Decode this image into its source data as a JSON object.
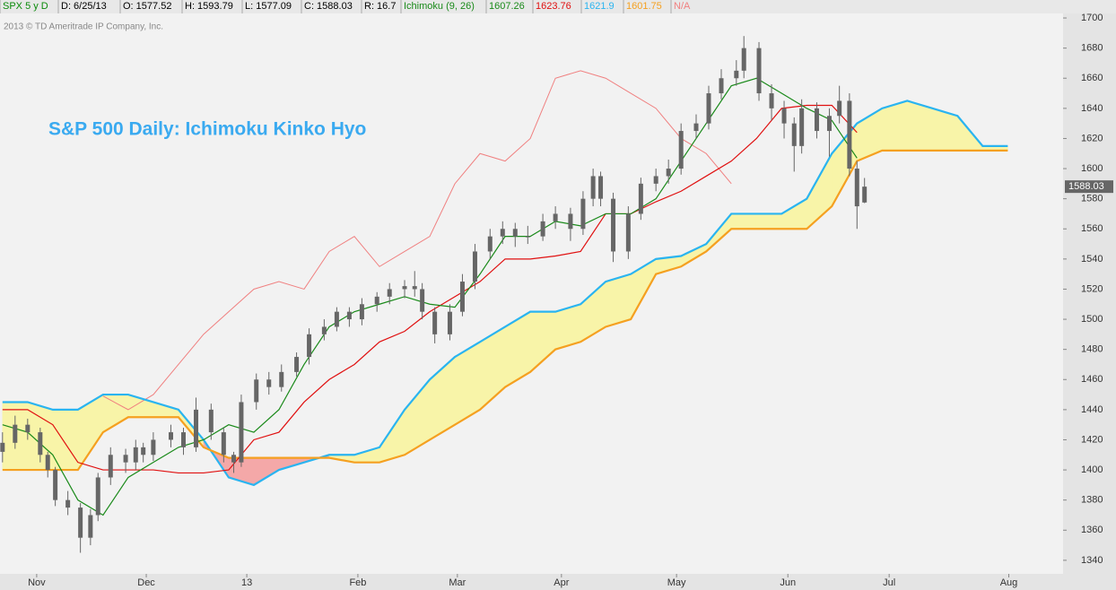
{
  "chart_data": {
    "type": "candlestick",
    "header": [
      {
        "text": "SPX 5 y D",
        "color": "#0a8a0a"
      },
      {
        "text": "D: 6/25/13",
        "color": "#000000"
      },
      {
        "text": "O: 1577.52",
        "color": "#000000"
      },
      {
        "text": "H: 1593.79",
        "color": "#000000"
      },
      {
        "text": "L: 1577.09",
        "color": "#000000"
      },
      {
        "text": "C: 1588.03",
        "color": "#000000"
      },
      {
        "text": "R: 16.7",
        "color": "#000000"
      },
      {
        "text": "Ichimoku (9, 26)",
        "color": "#1a8a1a"
      },
      {
        "text": "1607.26",
        "color": "#1a8a1a"
      },
      {
        "text": "1623.76",
        "color": "#e01010"
      },
      {
        "text": "1621.9",
        "color": "#2ab4f0"
      },
      {
        "text": "1601.75",
        "color": "#f5a020"
      },
      {
        "text": "N/A",
        "color": "#f08080"
      }
    ],
    "copyright": "2013 © TD Ameritrade IP Company, Inc.",
    "title": "S&P 500 Daily: Ichimoku Kinko Hyo",
    "title_color": "#3aaaf0",
    "last_price": 1588.03,
    "candle_color": "#666666",
    "xlim": [
      -0.5,
      211
    ],
    "xticks": [
      {
        "value": 6.8,
        "label": "Nov"
      },
      {
        "value": 28.6,
        "label": "Dec"
      },
      {
        "value": 48.6,
        "label": "13"
      },
      {
        "value": 70.7,
        "label": "Feb"
      },
      {
        "value": 90.5,
        "label": "Mar"
      },
      {
        "value": 111.2,
        "label": "Apr"
      },
      {
        "value": 134.1,
        "label": "May"
      },
      {
        "value": 156.25,
        "label": "Jun"
      },
      {
        "value": 176.4,
        "label": "Jul"
      },
      {
        "value": 200.2,
        "label": "Aug"
      }
    ],
    "ylim": [
      1331,
      1703
    ],
    "yticks": [
      1340,
      1360,
      1380,
      1400,
      1420,
      1440,
      1460,
      1480,
      1500,
      1520,
      1540,
      1560,
      1580,
      1600,
      1620,
      1640,
      1660,
      1680,
      1700
    ],
    "candle_x": [
      0,
      2.5,
      5,
      7.5,
      9,
      10.5,
      13,
      15.5,
      17.5,
      19,
      21.5,
      24.5,
      26.5,
      28,
      30,
      33.5,
      36,
      38.5,
      41.5,
      44,
      46,
      47.5,
      50.5,
      53,
      55.5,
      58.5,
      61,
      64,
      66.5,
      69,
      71.5,
      74.5,
      77,
      80,
      82,
      83.5,
      86,
      89,
      91.5,
      94,
      97,
      99.5,
      102,
      104.5,
      107.5,
      110,
      113,
      115.5,
      117.5,
      119,
      121.5,
      124.5,
      127,
      130,
      132.5,
      135,
      138,
      140.5,
      143,
      146,
      147.5,
      150.5,
      153,
      155.5,
      157.5,
      159,
      162,
      164.5,
      166.5,
      168.5,
      170,
      171.5
    ],
    "candles": [
      [
        1412,
        1425,
        1405,
        1418
      ],
      [
        1418,
        1436,
        1414,
        1430
      ],
      [
        1430,
        1434,
        1420,
        1425
      ],
      [
        1425,
        1428,
        1405,
        1410
      ],
      [
        1410,
        1412,
        1395,
        1400
      ],
      [
        1400,
        1402,
        1376,
        1380
      ],
      [
        1380,
        1386,
        1370,
        1375
      ],
      [
        1375,
        1378,
        1345,
        1355
      ],
      [
        1355,
        1374,
        1350,
        1370
      ],
      [
        1370,
        1398,
        1366,
        1395
      ],
      [
        1395,
        1415,
        1390,
        1410
      ],
      [
        1410,
        1414,
        1398,
        1405
      ],
      [
        1405,
        1420,
        1400,
        1415
      ],
      [
        1415,
        1418,
        1405,
        1410
      ],
      [
        1410,
        1425,
        1406,
        1420
      ],
      [
        1420,
        1430,
        1415,
        1425
      ],
      [
        1425,
        1428,
        1410,
        1415
      ],
      [
        1415,
        1448,
        1412,
        1440
      ],
      [
        1440,
        1444,
        1420,
        1425
      ],
      [
        1425,
        1428,
        1405,
        1410
      ],
      [
        1410,
        1412,
        1398,
        1405
      ],
      [
        1405,
        1450,
        1402,
        1445
      ],
      [
        1445,
        1464,
        1440,
        1460
      ],
      [
        1460,
        1465,
        1450,
        1455
      ],
      [
        1455,
        1470,
        1452,
        1465
      ],
      [
        1465,
        1478,
        1462,
        1475
      ],
      [
        1475,
        1494,
        1470,
        1490
      ],
      [
        1490,
        1500,
        1486,
        1495
      ],
      [
        1495,
        1508,
        1492,
        1505
      ],
      [
        1505,
        1508,
        1495,
        1500
      ],
      [
        1500,
        1514,
        1496,
        1510
      ],
      [
        1510,
        1518,
        1505,
        1515
      ],
      [
        1515,
        1524,
        1510,
        1520
      ],
      [
        1520,
        1526,
        1514,
        1522
      ],
      [
        1522,
        1532,
        1515,
        1520
      ],
      [
        1520,
        1524,
        1500,
        1505
      ],
      [
        1505,
        1508,
        1484,
        1490
      ],
      [
        1490,
        1510,
        1486,
        1505
      ],
      [
        1505,
        1530,
        1502,
        1525
      ],
      [
        1525,
        1550,
        1520,
        1545
      ],
      [
        1545,
        1560,
        1540,
        1555
      ],
      [
        1555,
        1565,
        1550,
        1560
      ],
      [
        1560,
        1564,
        1548,
        1555
      ],
      [
        1555,
        1562,
        1550,
        1555
      ],
      [
        1555,
        1570,
        1552,
        1565
      ],
      [
        1565,
        1575,
        1560,
        1570
      ],
      [
        1570,
        1574,
        1552,
        1560
      ],
      [
        1560,
        1585,
        1556,
        1580
      ],
      [
        1580,
        1600,
        1575,
        1595
      ],
      [
        1595,
        1598,
        1575,
        1580
      ],
      [
        1580,
        1584,
        1538,
        1545
      ],
      [
        1545,
        1575,
        1540,
        1570
      ],
      [
        1570,
        1594,
        1566,
        1590
      ],
      [
        1590,
        1600,
        1585,
        1595
      ],
      [
        1595,
        1606,
        1590,
        1600
      ],
      [
        1600,
        1630,
        1596,
        1625
      ],
      [
        1625,
        1636,
        1620,
        1630
      ],
      [
        1630,
        1655,
        1626,
        1650
      ],
      [
        1650,
        1666,
        1646,
        1660
      ],
      [
        1660,
        1672,
        1655,
        1665
      ],
      [
        1665,
        1688,
        1660,
        1680
      ],
      [
        1680,
        1684,
        1645,
        1650
      ],
      [
        1650,
        1656,
        1632,
        1640
      ],
      [
        1640,
        1645,
        1620,
        1630
      ],
      [
        1630,
        1634,
        1598,
        1615
      ],
      [
        1615,
        1646,
        1610,
        1640
      ],
      [
        1640,
        1644,
        1620,
        1625
      ],
      [
        1625,
        1640,
        1608,
        1635
      ],
      [
        1635,
        1655,
        1630,
        1645
      ],
      [
        1645,
        1650,
        1595,
        1600
      ],
      [
        1600,
        1605,
        1560,
        1575
      ],
      [
        1577.52,
        1593.79,
        1577.09,
        1588.03
      ]
    ],
    "x": [
      0,
      5,
      10,
      15,
      20,
      25,
      30,
      35,
      40,
      45,
      50,
      55,
      60,
      65,
      70,
      75,
      80,
      85,
      90,
      95,
      100,
      105,
      110,
      115,
      120,
      125,
      130,
      135,
      140,
      145,
      150,
      155,
      160,
      165,
      170,
      175,
      180,
      185,
      190,
      195,
      200
    ],
    "series": [
      {
        "color": "#f08080",
        "values": [
          null,
          null,
          null,
          null,
          1449,
          1440,
          1450,
          1470,
          1490,
          1505,
          1520,
          1525,
          1520,
          1545,
          1555,
          1535,
          1545,
          1555,
          1590,
          1610,
          1605,
          1620,
          1660,
          1665,
          1660,
          1650,
          1640,
          1620,
          1610,
          1590,
          null,
          null,
          null,
          null,
          null,
          null,
          null,
          null,
          null,
          null,
          null
        ]
      },
      {
        "color": "#2ab4f0",
        "values": [
          1445,
          1445,
          1440,
          1440,
          1450,
          1450,
          1445,
          1440,
          1420,
          1395,
          1390,
          1400,
          1405,
          1410,
          1410,
          1415,
          1440,
          1460,
          1475,
          1485,
          1495,
          1505,
          1505,
          1510,
          1525,
          1530,
          1540,
          1542,
          1550,
          1570,
          1570,
          1570,
          1580,
          1610,
          1630,
          1640,
          1645,
          1640,
          1635,
          1615,
          1615
        ]
      },
      {
        "color": "#f5a020",
        "values": [
          1400,
          1400,
          1400,
          1400,
          1425,
          1435,
          1435,
          1435,
          1415,
          1408,
          1408,
          1408,
          1408,
          1408,
          1405,
          1405,
          1410,
          1420,
          1430,
          1440,
          1455,
          1465,
          1480,
          1485,
          1495,
          1500,
          1530,
          1535,
          1545,
          1560,
          1560,
          1560,
          1560,
          1575,
          1605,
          1612,
          1612,
          1612,
          1612,
          1612,
          1612
        ]
      },
      {
        "color": "#e01010",
        "values": [
          1440,
          1440,
          1430,
          1405,
          1400,
          1400,
          1400,
          1398,
          1398,
          1400,
          1420,
          1425,
          1445,
          1460,
          1470,
          1485,
          1492,
          1505,
          1515,
          1525,
          1540,
          1540,
          1542,
          1545,
          1570,
          1570,
          1578,
          1585,
          1595,
          1605,
          1620,
          1640,
          1642,
          1642,
          1624,
          null,
          null,
          null,
          null,
          null,
          null
        ]
      },
      {
        "color": "#1a8a1a",
        "values": [
          1430,
          1425,
          1410,
          1380,
          1370,
          1395,
          1405,
          1415,
          1420,
          1430,
          1425,
          1440,
          1470,
          1495,
          1505,
          1510,
          1515,
          1510,
          1508,
          1530,
          1555,
          1555,
          1565,
          1562,
          1570,
          1570,
          1580,
          1605,
          1630,
          1655,
          1660,
          1650,
          1640,
          1632,
          1607,
          null,
          null,
          null,
          null,
          null,
          null
        ]
      }
    ],
    "cloud_colors": [
      "#f8f4a8",
      "#f4a8a8"
    ]
  }
}
